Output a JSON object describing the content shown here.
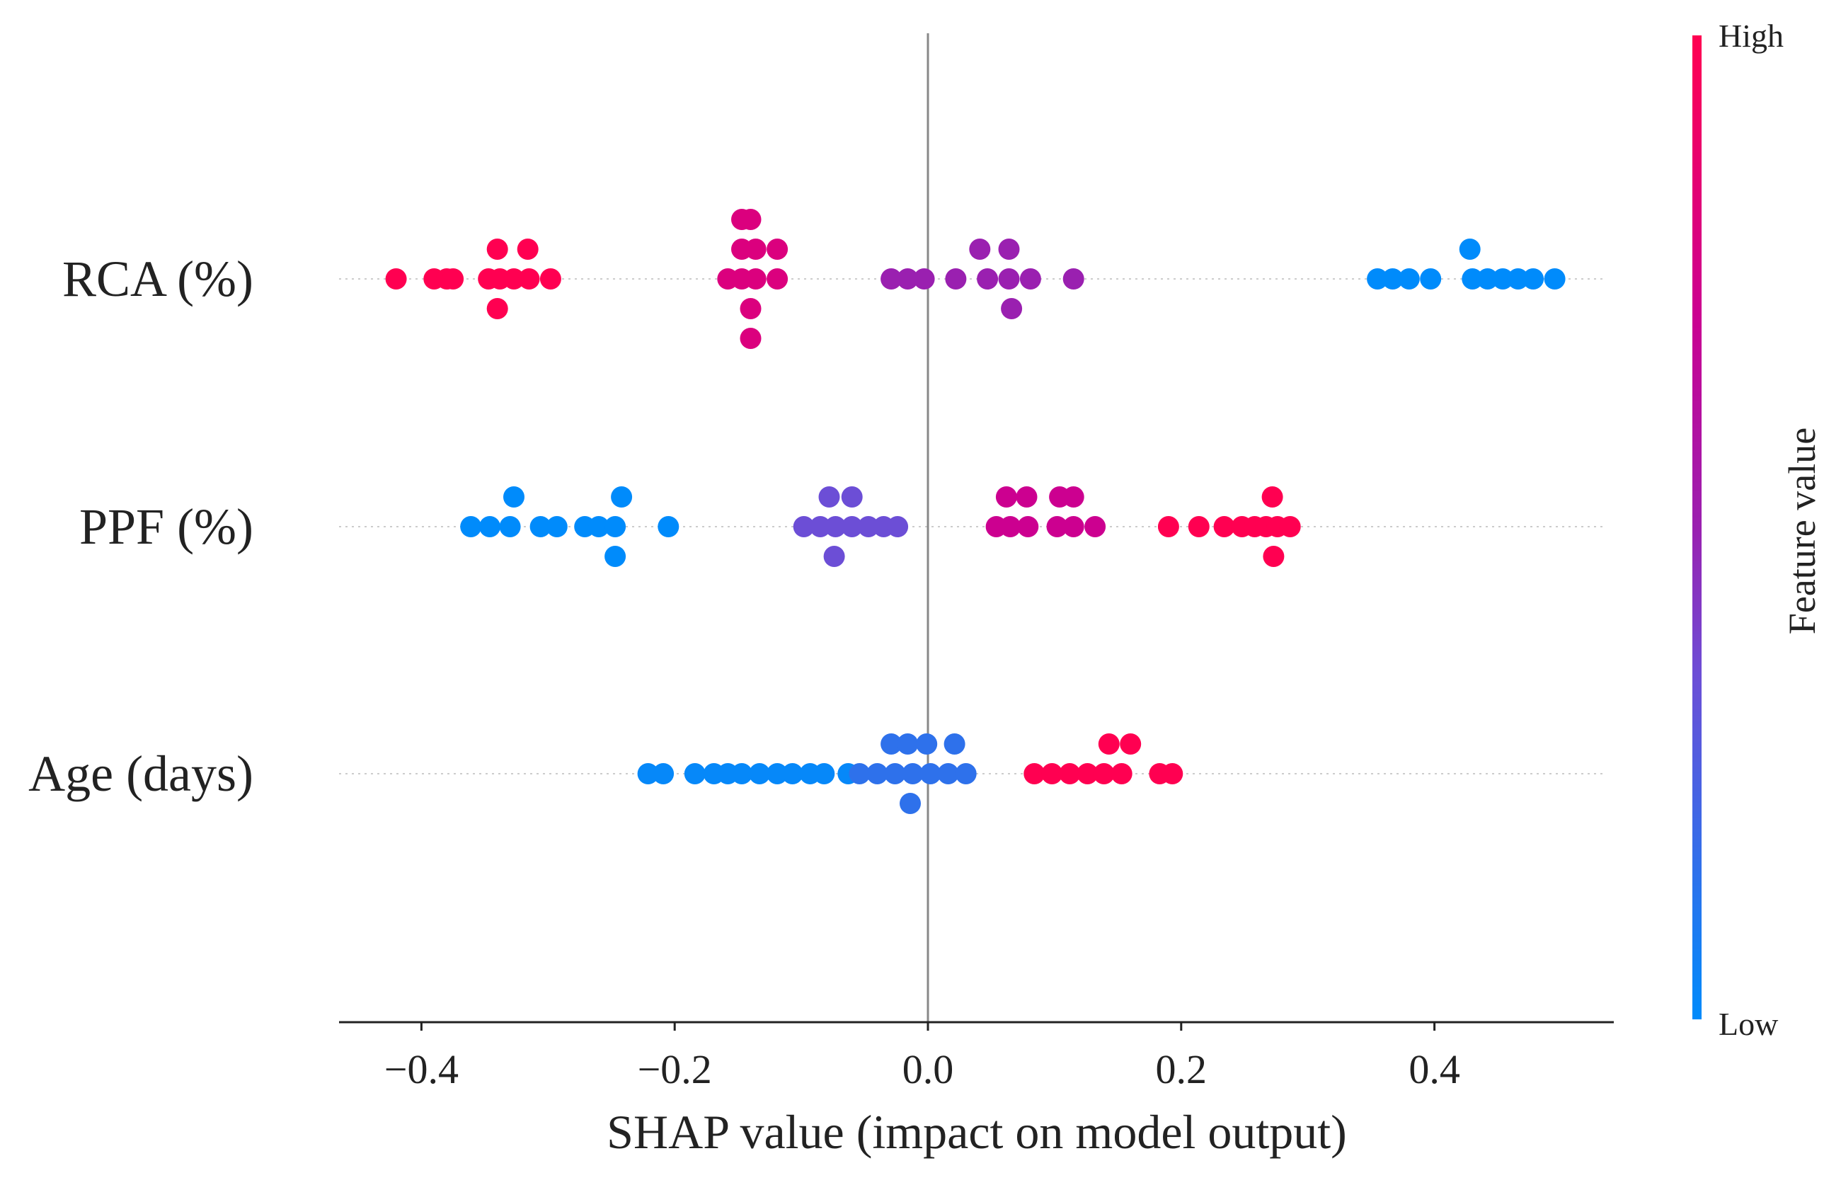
{
  "chart_data": {
    "type": "scatter",
    "subtype": "shap-beeswarm",
    "xlabel": "SHAP value (impact on model output)",
    "xlim": [
      -0.465,
      0.545
    ],
    "xticks": [
      -0.4,
      -0.2,
      0.0,
      0.2,
      0.4
    ],
    "xtick_labels": [
      "−0.4",
      "−0.2",
      "0.0",
      "0.2",
      "0.4"
    ],
    "colorbar": {
      "label": "Feature value",
      "high": "High",
      "low": "Low",
      "low_color": "#008bfb",
      "high_color": "#ff0051"
    },
    "point_format": [
      "shap_value",
      "stack_level",
      "feature_value_0_to_1"
    ],
    "features": [
      {
        "name": "RCA (%)",
        "points": [
          [
            -0.42,
            0,
            1
          ],
          [
            -0.39,
            0,
            1
          ],
          [
            -0.38,
            0,
            1
          ],
          [
            -0.375,
            0,
            1
          ],
          [
            -0.347,
            0,
            1
          ],
          [
            -0.338,
            0,
            1
          ],
          [
            -0.327,
            0,
            1
          ],
          [
            -0.315,
            0,
            1
          ],
          [
            -0.298,
            0,
            1
          ],
          [
            -0.34,
            1,
            1
          ],
          [
            -0.316,
            1,
            1
          ],
          [
            -0.34,
            -1,
            1
          ],
          [
            -0.158,
            0,
            0.8
          ],
          [
            -0.147,
            0,
            0.8
          ],
          [
            -0.136,
            0,
            0.8
          ],
          [
            -0.119,
            0,
            0.8
          ],
          [
            -0.147,
            1,
            0.8
          ],
          [
            -0.136,
            1,
            0.8
          ],
          [
            -0.119,
            1,
            0.8
          ],
          [
            -0.147,
            2,
            0.8
          ],
          [
            -0.14,
            2,
            0.8
          ],
          [
            -0.14,
            -1,
            0.8
          ],
          [
            -0.14,
            -2,
            0.8
          ],
          [
            -0.029,
            0,
            0.5
          ],
          [
            -0.016,
            0,
            0.5
          ],
          [
            -0.003,
            0,
            0.5
          ],
          [
            0.022,
            0,
            0.5
          ],
          [
            0.047,
            0,
            0.5
          ],
          [
            0.064,
            0,
            0.5
          ],
          [
            0.081,
            0,
            0.5
          ],
          [
            0.115,
            0,
            0.5
          ],
          [
            0.041,
            1,
            0.5
          ],
          [
            0.064,
            1,
            0.5
          ],
          [
            0.066,
            -1,
            0.5
          ],
          [
            0.355,
            0,
            0
          ],
          [
            0.367,
            0,
            0
          ],
          [
            0.38,
            0,
            0
          ],
          [
            0.397,
            0,
            0
          ],
          [
            0.43,
            0,
            0
          ],
          [
            0.442,
            0,
            0
          ],
          [
            0.454,
            0,
            0
          ],
          [
            0.466,
            0,
            0
          ],
          [
            0.478,
            0,
            0
          ],
          [
            0.495,
            0,
            0
          ],
          [
            0.428,
            1,
            0
          ]
        ]
      },
      {
        "name": "PPF (%)",
        "points": [
          [
            -0.361,
            0,
            0
          ],
          [
            -0.346,
            0,
            0
          ],
          [
            -0.33,
            0,
            0
          ],
          [
            -0.306,
            0,
            0
          ],
          [
            -0.293,
            0,
            0
          ],
          [
            -0.271,
            0,
            0
          ],
          [
            -0.26,
            0,
            0
          ],
          [
            -0.247,
            0,
            0
          ],
          [
            -0.205,
            0,
            0
          ],
          [
            -0.327,
            1,
            0
          ],
          [
            -0.242,
            1,
            0
          ],
          [
            -0.247,
            -1,
            0
          ],
          [
            -0.098,
            0,
            0.35
          ],
          [
            -0.085,
            0,
            0.35
          ],
          [
            -0.073,
            0,
            0.35
          ],
          [
            -0.06,
            0,
            0.35
          ],
          [
            -0.047,
            0,
            0.35
          ],
          [
            -0.035,
            0,
            0.35
          ],
          [
            -0.024,
            0,
            0.35
          ],
          [
            -0.078,
            1,
            0.35
          ],
          [
            -0.06,
            1,
            0.35
          ],
          [
            -0.074,
            -1,
            0.35
          ],
          [
            0.054,
            0,
            0.72
          ],
          [
            0.065,
            0,
            0.72
          ],
          [
            0.079,
            0,
            0.72
          ],
          [
            0.102,
            0,
            0.72
          ],
          [
            0.115,
            0,
            0.72
          ],
          [
            0.132,
            0,
            0.72
          ],
          [
            0.062,
            1,
            0.72
          ],
          [
            0.078,
            1,
            0.72
          ],
          [
            0.104,
            1,
            0.72
          ],
          [
            0.115,
            1,
            0.72
          ],
          [
            0.19,
            0,
            1
          ],
          [
            0.214,
            0,
            1
          ],
          [
            0.234,
            0,
            1
          ],
          [
            0.248,
            0,
            1
          ],
          [
            0.258,
            0,
            1
          ],
          [
            0.267,
            0,
            1
          ],
          [
            0.276,
            0,
            1
          ],
          [
            0.286,
            0,
            1
          ],
          [
            0.272,
            1,
            1
          ],
          [
            0.273,
            -1,
            1
          ]
        ]
      },
      {
        "name": "Age (days)",
        "points": [
          [
            -0.221,
            0,
            0.02
          ],
          [
            -0.209,
            0,
            0.02
          ],
          [
            -0.184,
            0,
            0.02
          ],
          [
            -0.169,
            0,
            0.02
          ],
          [
            -0.158,
            0,
            0.02
          ],
          [
            -0.147,
            0,
            0.02
          ],
          [
            -0.133,
            0,
            0.02
          ],
          [
            -0.119,
            0,
            0.02
          ],
          [
            -0.107,
            0,
            0.02
          ],
          [
            -0.093,
            0,
            0.02
          ],
          [
            -0.082,
            0,
            0.02
          ],
          [
            -0.063,
            0,
            0.02
          ],
          [
            -0.054,
            0,
            0.15
          ],
          [
            -0.04,
            0,
            0.15
          ],
          [
            -0.026,
            0,
            0.15
          ],
          [
            -0.012,
            0,
            0.15
          ],
          [
            0.002,
            0,
            0.15
          ],
          [
            0.016,
            0,
            0.15
          ],
          [
            0.03,
            0,
            0.15
          ],
          [
            -0.029,
            1,
            0.15
          ],
          [
            -0.016,
            1,
            0.15
          ],
          [
            -0.001,
            1,
            0.15
          ],
          [
            0.021,
            1,
            0.15
          ],
          [
            -0.014,
            -1,
            0.15
          ],
          [
            0.084,
            0,
            1
          ],
          [
            0.098,
            0,
            1
          ],
          [
            0.112,
            0,
            1
          ],
          [
            0.126,
            0,
            1
          ],
          [
            0.139,
            0,
            1
          ],
          [
            0.153,
            0,
            1
          ],
          [
            0.183,
            0,
            1
          ],
          [
            0.193,
            0,
            1
          ],
          [
            0.143,
            1,
            1
          ],
          [
            0.16,
            1,
            1
          ]
        ]
      }
    ]
  }
}
